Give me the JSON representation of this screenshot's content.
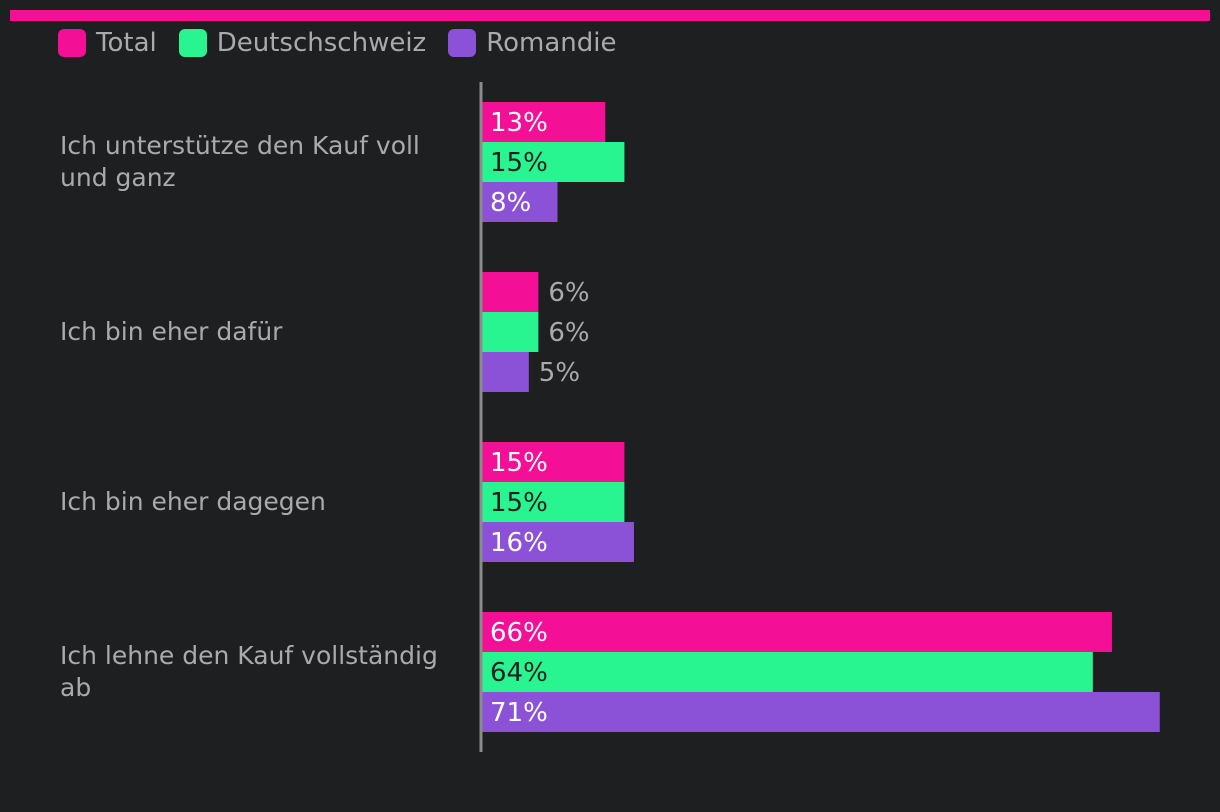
{
  "colors": {
    "background": "#1e1f21",
    "accent": "#f40f97",
    "text": "#a9aaac",
    "axis": "#8a8b8d",
    "label_dark": "#1e1f21",
    "label_light": "#ffffff"
  },
  "legend": [
    {
      "name": "Total",
      "color": "#f40f97"
    },
    {
      "name": "Deutschschweiz",
      "color": "#28f58f"
    },
    {
      "name": "Romandie",
      "color": "#8b52d8"
    }
  ],
  "chart_data": {
    "type": "bar",
    "orientation": "horizontal",
    "categories": [
      "Ich unterstütze den Kauf voll und ganz",
      "Ich bin eher dafür",
      "Ich bin eher dagegen",
      "Ich lehne den Kauf vollständig ab"
    ],
    "series": [
      {
        "name": "Total",
        "color": "#f40f97",
        "values": [
          13,
          6,
          15,
          66
        ],
        "labels": [
          "13%",
          "6%",
          "15%",
          "66%"
        ]
      },
      {
        "name": "Deutschschweiz",
        "color": "#28f58f",
        "values": [
          15,
          6,
          15,
          64
        ],
        "labels": [
          "15%",
          "6%",
          "15%",
          "64%"
        ]
      },
      {
        "name": "Romandie",
        "color": "#8b52d8",
        "values": [
          8,
          5,
          16,
          71
        ],
        "labels": [
          "8%",
          "5%",
          "16%",
          "71%"
        ]
      }
    ],
    "xlim": [
      0,
      71
    ],
    "grid": false,
    "legend_position": "top-left"
  }
}
